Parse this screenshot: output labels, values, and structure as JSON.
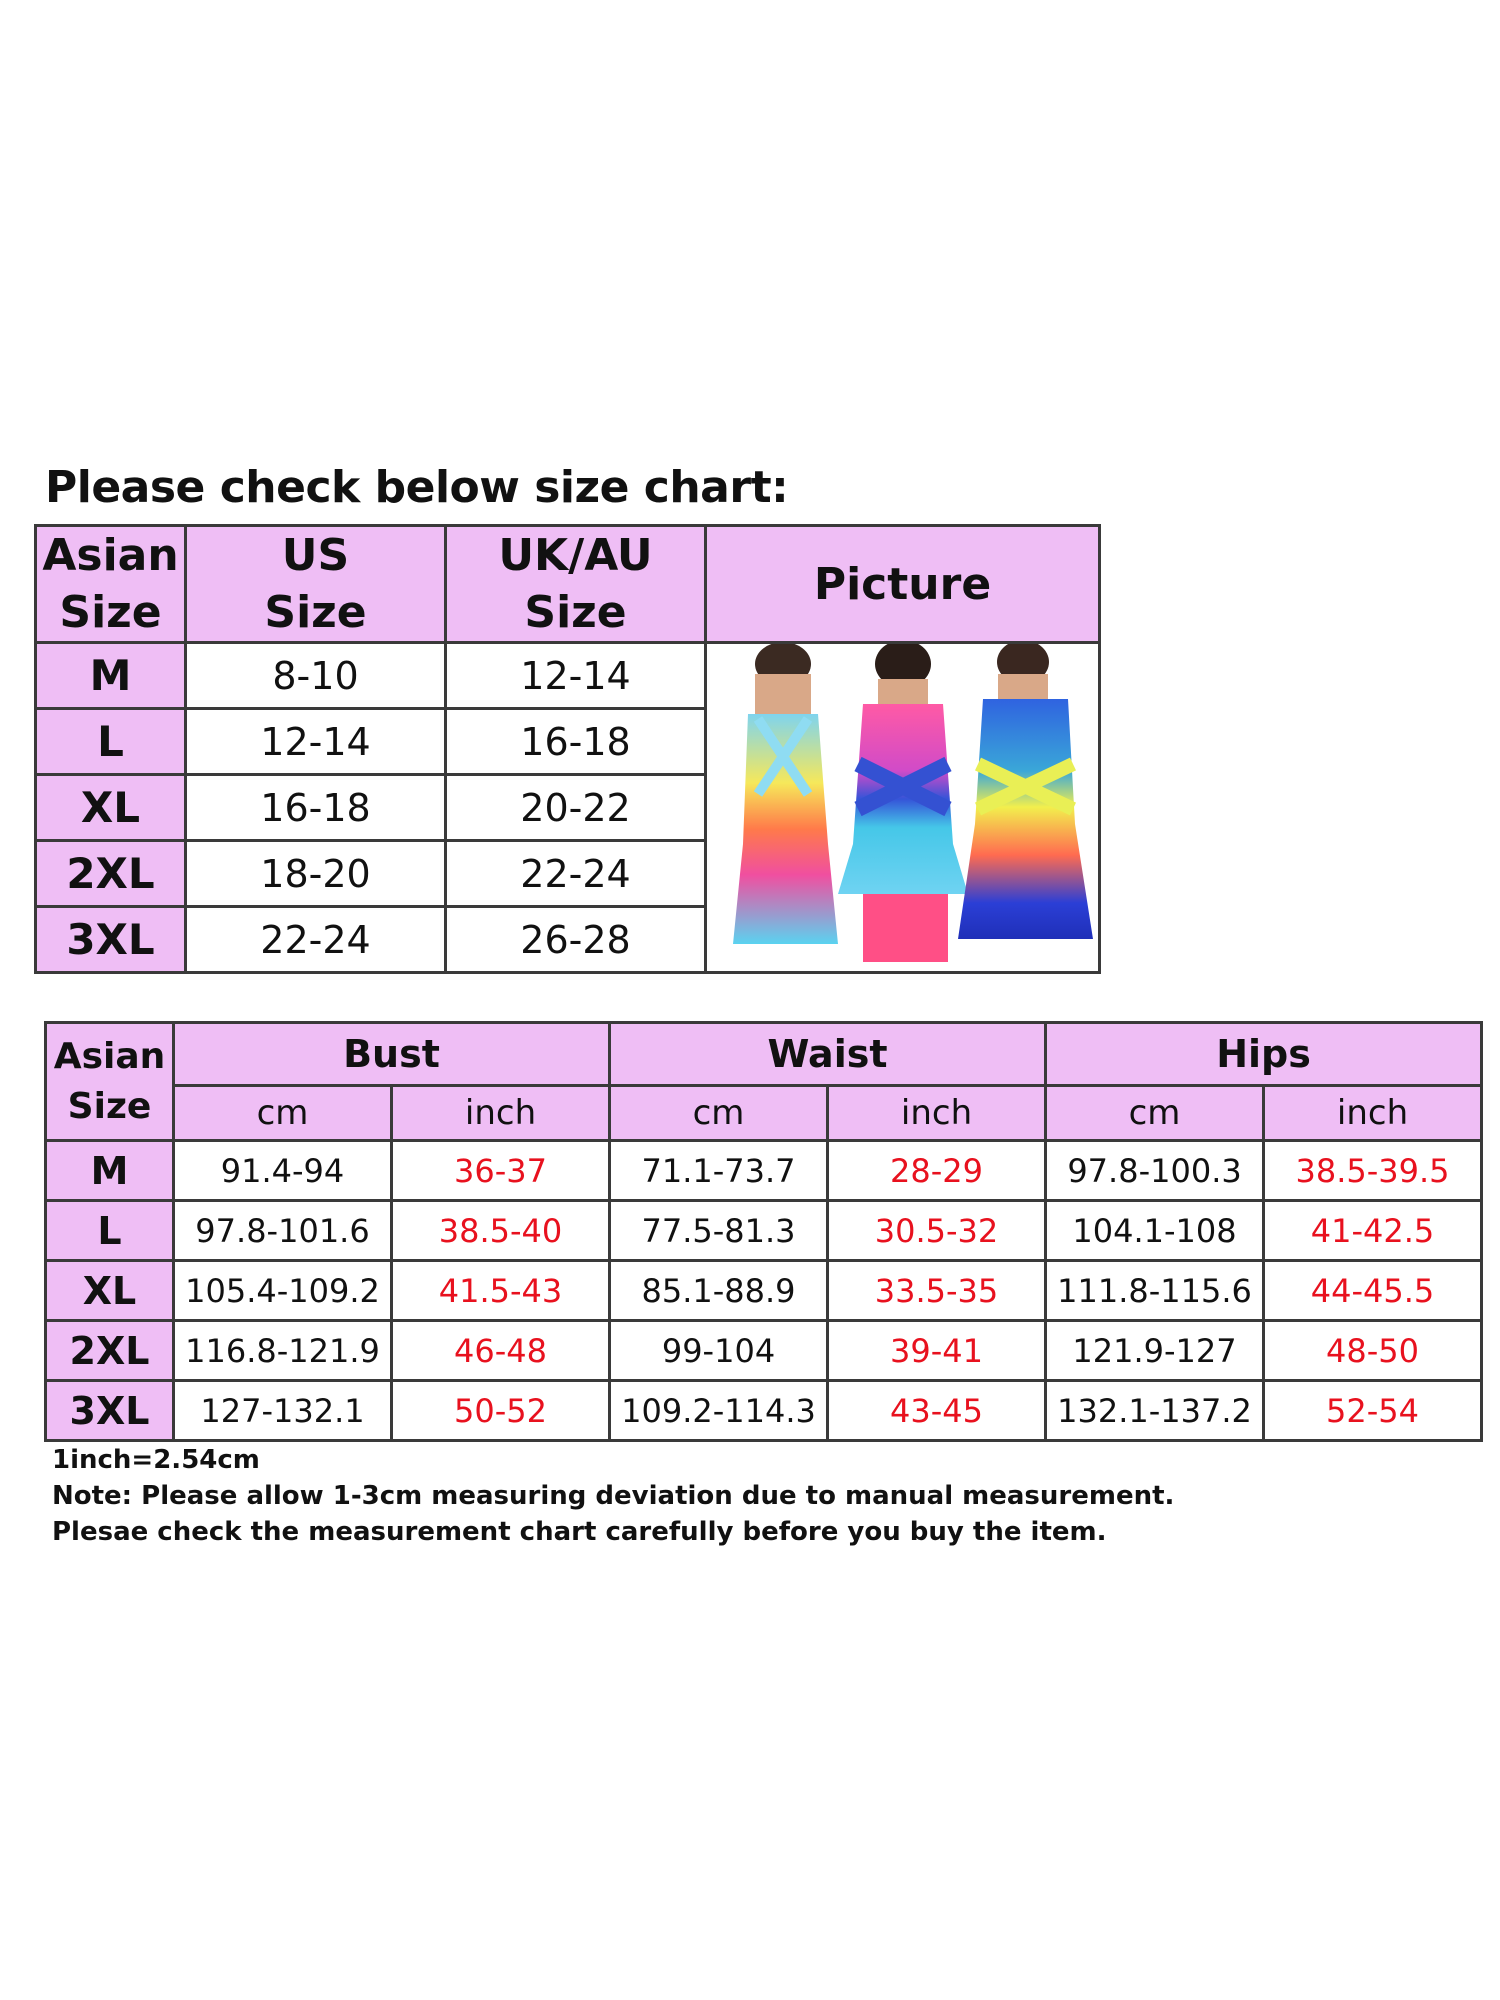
{
  "heading": "Please check below size chart:",
  "size_table": {
    "headers": {
      "asian": [
        "Asian",
        "Size"
      ],
      "us": [
        "US",
        "Size"
      ],
      "ukau": [
        "UK/AU",
        "Size"
      ],
      "picture": "Picture"
    },
    "rows": [
      {
        "asian": "M",
        "us": "8-10",
        "ukau": "12-14"
      },
      {
        "asian": "L",
        "us": "12-14",
        "ukau": "16-18"
      },
      {
        "asian": "XL",
        "us": "16-18",
        "ukau": "20-22"
      },
      {
        "asian": "2XL",
        "us": "18-20",
        "ukau": "22-24"
      },
      {
        "asian": "3XL",
        "us": "22-24",
        "ukau": "26-28"
      }
    ]
  },
  "measure_table": {
    "headers": {
      "asian": [
        "Asian",
        "Size"
      ],
      "groups": [
        "Bust",
        "Waist",
        "Hips"
      ],
      "units": [
        "cm",
        "inch",
        "cm",
        "inch",
        "cm",
        "inch"
      ]
    },
    "rows": [
      {
        "size": "M",
        "values": [
          "91.4-94",
          "36-37",
          "71.1-73.7",
          "28-29",
          "97.8-100.3",
          "38.5-39.5"
        ]
      },
      {
        "size": "L",
        "values": [
          "97.8-101.6",
          "38.5-40",
          "77.5-81.3",
          "30.5-32",
          "104.1-108",
          "41-42.5"
        ]
      },
      {
        "size": "XL",
        "values": [
          "105.4-109.2",
          "41.5-43",
          "85.1-88.9",
          "33.5-35",
          "111.8-115.6",
          "44-45.5"
        ]
      },
      {
        "size": "2XL",
        "values": [
          "116.8-121.9",
          "46-48",
          "99-104",
          "39-41",
          "121.9-127",
          "48-50"
        ]
      },
      {
        "size": "3XL",
        "values": [
          "127-132.1",
          "50-52",
          "109.2-114.3",
          "43-45",
          "132.1-137.2",
          "52-54"
        ]
      }
    ]
  },
  "notes": [
    "1inch=2.54cm",
    "Note: Please allow 1-3cm measuring deviation due to manual measurement.",
    "Plesae check the measurement chart carefully before you buy the item."
  ],
  "colors": {
    "header_bg": "#efbef5",
    "inch_text": "#e8111e",
    "border": "#3a3a3a"
  }
}
